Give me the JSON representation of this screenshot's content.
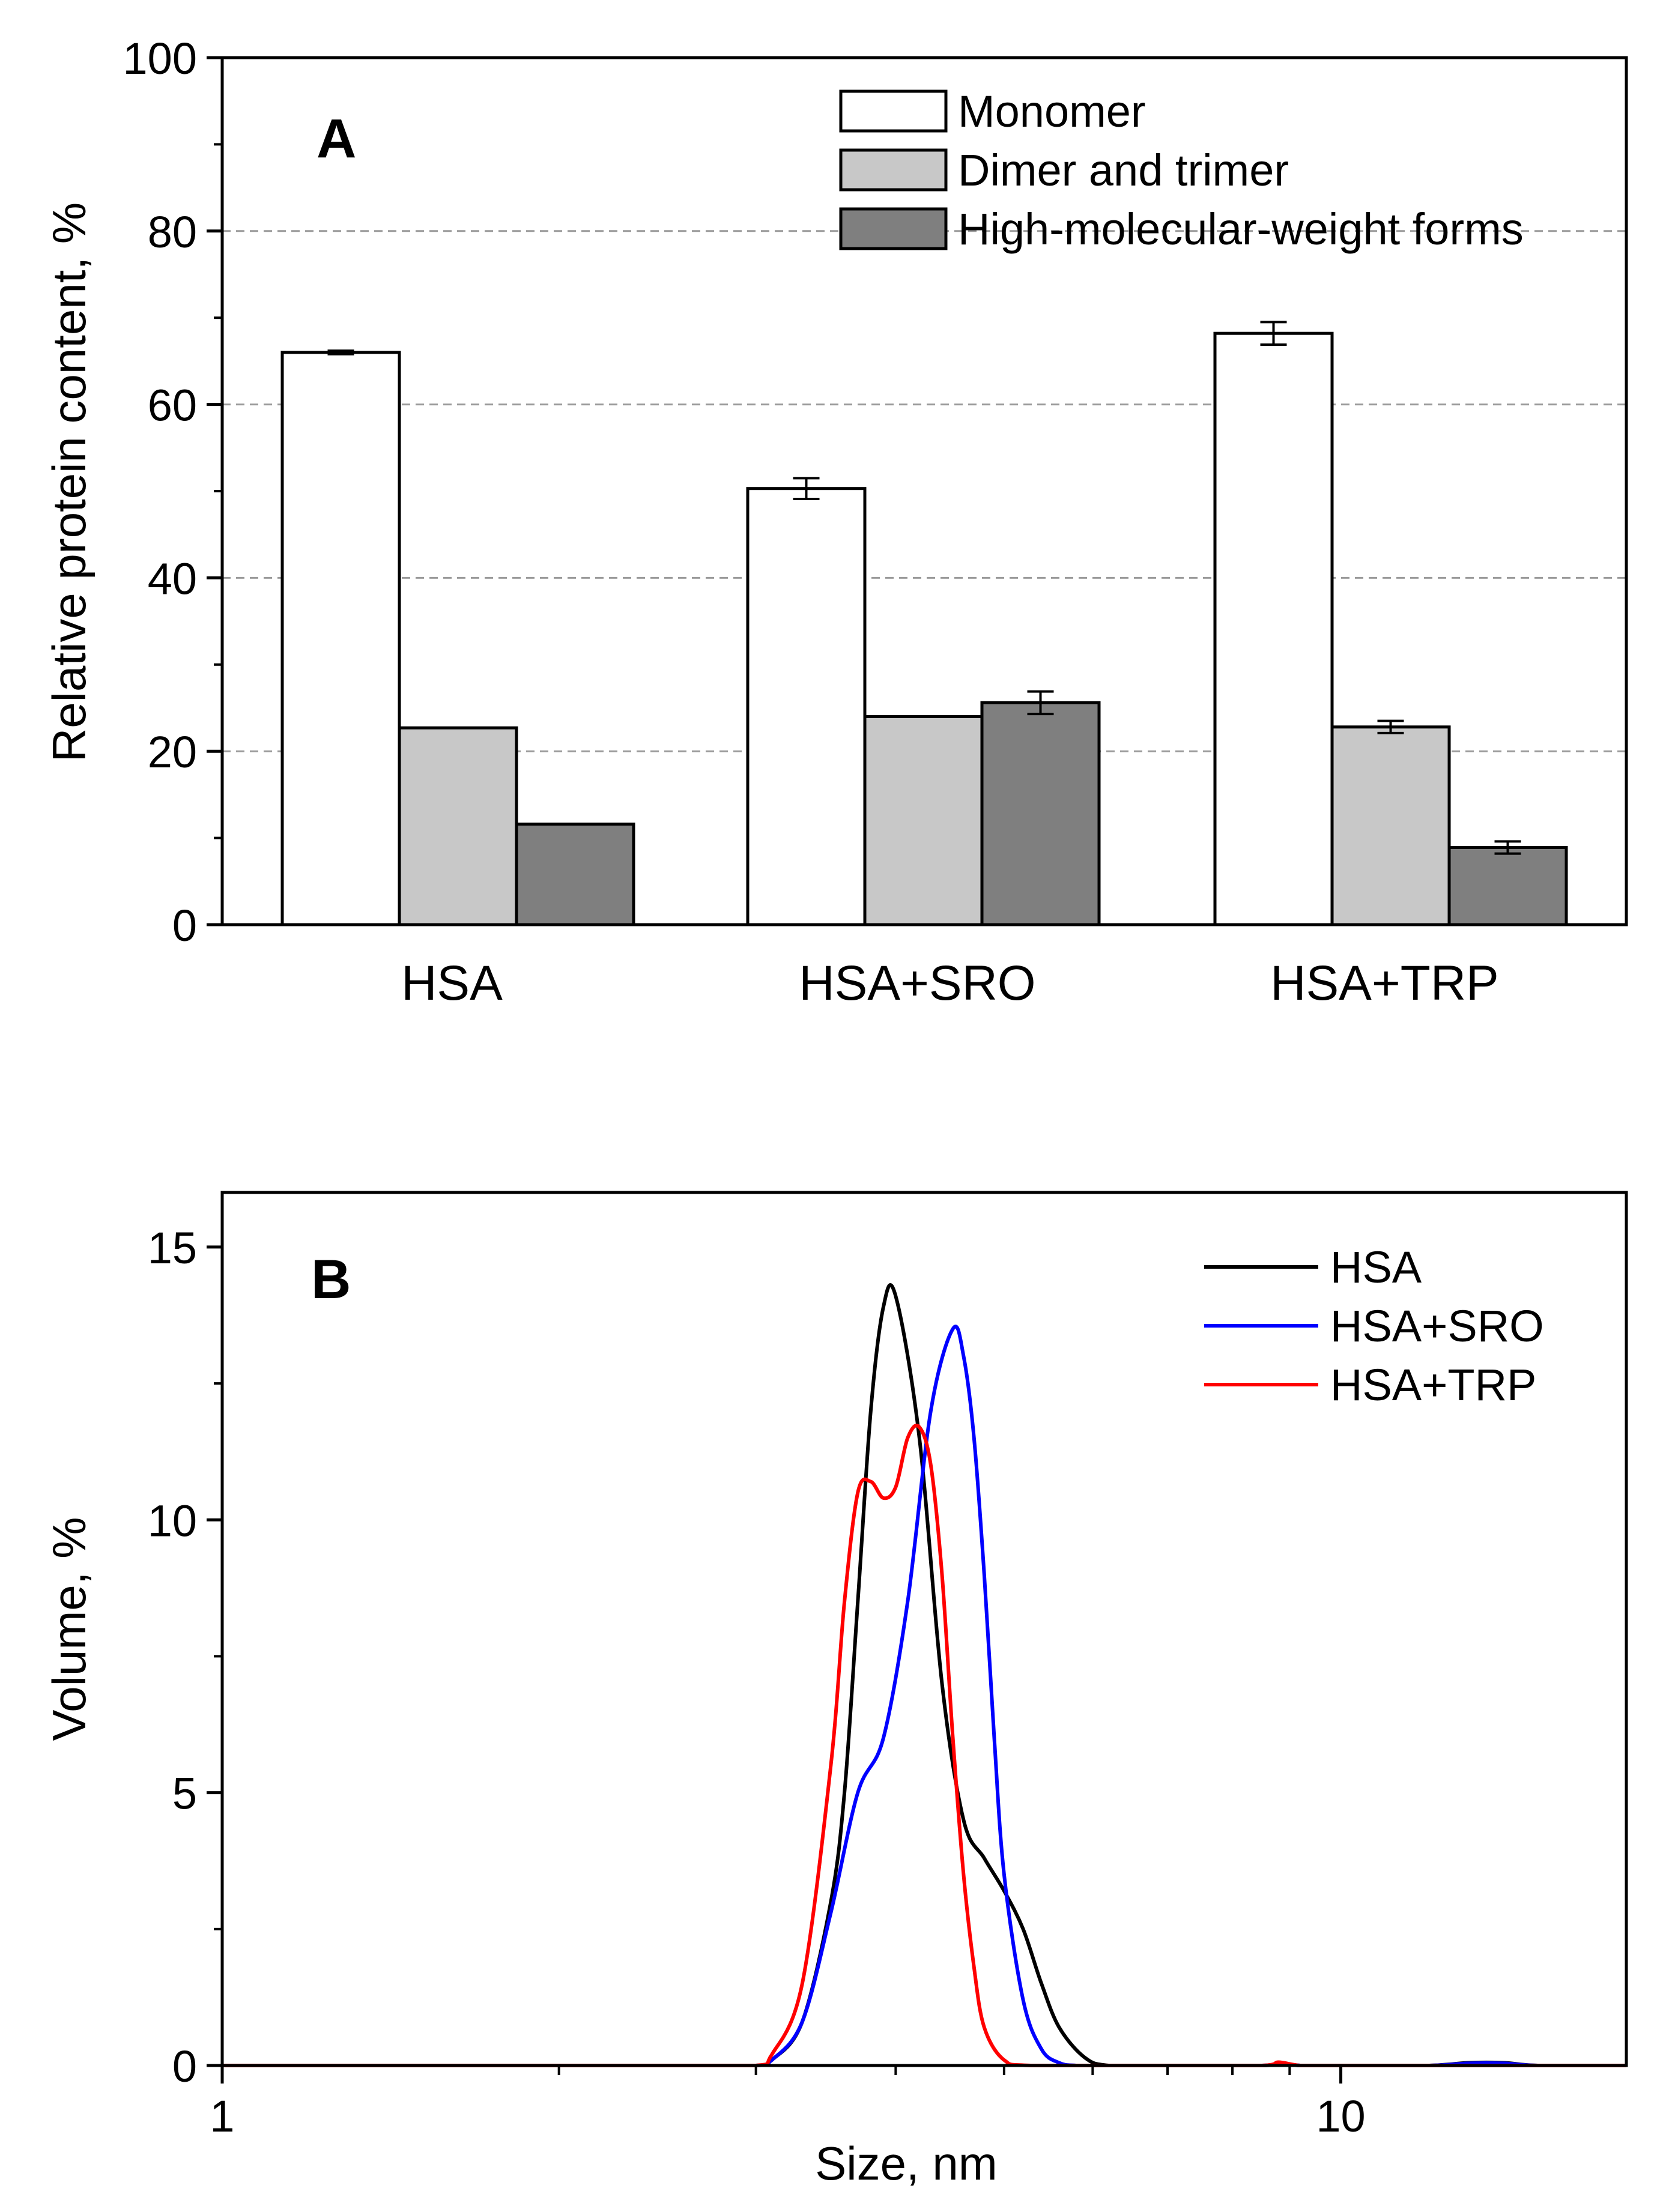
{
  "chart_data": [
    {
      "panel": "A",
      "type": "bar",
      "ylabel": "Relative protein content, %",
      "xlabel": "",
      "ylim": [
        0,
        100
      ],
      "yticks": [
        0,
        20,
        40,
        60,
        80,
        100
      ],
      "grid": "dashed horizontal at 20, 40, 60, 80",
      "categories": [
        "HSA",
        "HSA+SRO",
        "HSA+TRP"
      ],
      "series": [
        {
          "name": "Monomer",
          "color": "#ffffff",
          "values": [
            66.0,
            50.3,
            68.2
          ],
          "errors": [
            0.2,
            1.2,
            1.3
          ]
        },
        {
          "name": "Dimer and trimer",
          "color": "#c8c8c8",
          "values": [
            22.7,
            24.0,
            22.8
          ],
          "errors": [
            0.0,
            0.0,
            0.7
          ]
        },
        {
          "name": "High-molecular-weight forms",
          "color": "#7f7f7f",
          "values": [
            11.6,
            25.6,
            8.9
          ],
          "errors": [
            0.0,
            1.3,
            0.7
          ]
        }
      ],
      "legend": "top-right"
    },
    {
      "panel": "B",
      "type": "line",
      "xlabel": "Size, nm",
      "ylabel": "Volume, %",
      "xscale": "log",
      "xlim": [
        1,
        18
      ],
      "ylim": [
        0,
        16
      ],
      "xticks": [
        1,
        10
      ],
      "yticks": [
        0,
        5,
        10,
        15
      ],
      "legend": "top-right",
      "series": [
        {
          "name": "HSA",
          "color": "#000000",
          "x": [
            1,
            2.5,
            3.0,
            3.1,
            3.3,
            3.5,
            3.6,
            3.7,
            3.8,
            3.9,
            4.0,
            4.2,
            4.4,
            4.6,
            4.8,
            5.0,
            5.2,
            5.4,
            5.6,
            5.9,
            6.2,
            7,
            8.5,
            8.8,
            9.2,
            10,
            12,
            13,
            14,
            15,
            18
          ],
          "y": [
            0,
            0,
            0,
            0.1,
            0.8,
            3.0,
            5.0,
            8.5,
            12.0,
            13.9,
            14.1,
            11.5,
            7.0,
            4.5,
            3.8,
            3.2,
            2.5,
            1.5,
            0.7,
            0.15,
            0,
            0,
            0,
            0.03,
            0,
            0,
            0,
            0.05,
            0.05,
            0,
            0
          ]
        },
        {
          "name": "HSA+SRO",
          "color": "#0000ff",
          "x": [
            1,
            2.5,
            3.0,
            3.1,
            3.3,
            3.5,
            3.7,
            3.9,
            4.1,
            4.3,
            4.5,
            4.6,
            4.7,
            4.8,
            4.9,
            5.0,
            5.2,
            5.4,
            5.6,
            5.8,
            6.2,
            7,
            8.5,
            8.8,
            9.2,
            10,
            12,
            13,
            14,
            15,
            18
          ],
          "y": [
            0,
            0,
            0,
            0.1,
            0.8,
            2.8,
            5.0,
            6.0,
            8.5,
            12.0,
            13.5,
            13.0,
            11.5,
            9.0,
            6.0,
            3.5,
            1.2,
            0.3,
            0.05,
            0,
            0,
            0,
            0,
            0.05,
            0,
            0,
            0,
            0.04,
            0.04,
            0,
            0
          ]
        },
        {
          "name": "HSA+TRP",
          "color": "#ff0000",
          "x": [
            1,
            2.5,
            3.0,
            3.1,
            3.3,
            3.5,
            3.6,
            3.7,
            3.8,
            3.9,
            4.0,
            4.1,
            4.2,
            4.3,
            4.4,
            4.5,
            4.6,
            4.7,
            4.8,
            5.0,
            5.3,
            7,
            8.5,
            8.8,
            9.2,
            10,
            12,
            13,
            14,
            15,
            18
          ],
          "y": [
            0,
            0,
            0,
            0.2,
            1.5,
            5.5,
            8.5,
            10.5,
            10.7,
            10.4,
            10.6,
            11.5,
            11.7,
            11.0,
            9.0,
            6.0,
            3.5,
            1.8,
            0.7,
            0.1,
            0,
            0,
            0,
            0.06,
            0,
            0,
            0,
            0,
            0,
            0,
            0
          ]
        }
      ]
    }
  ]
}
